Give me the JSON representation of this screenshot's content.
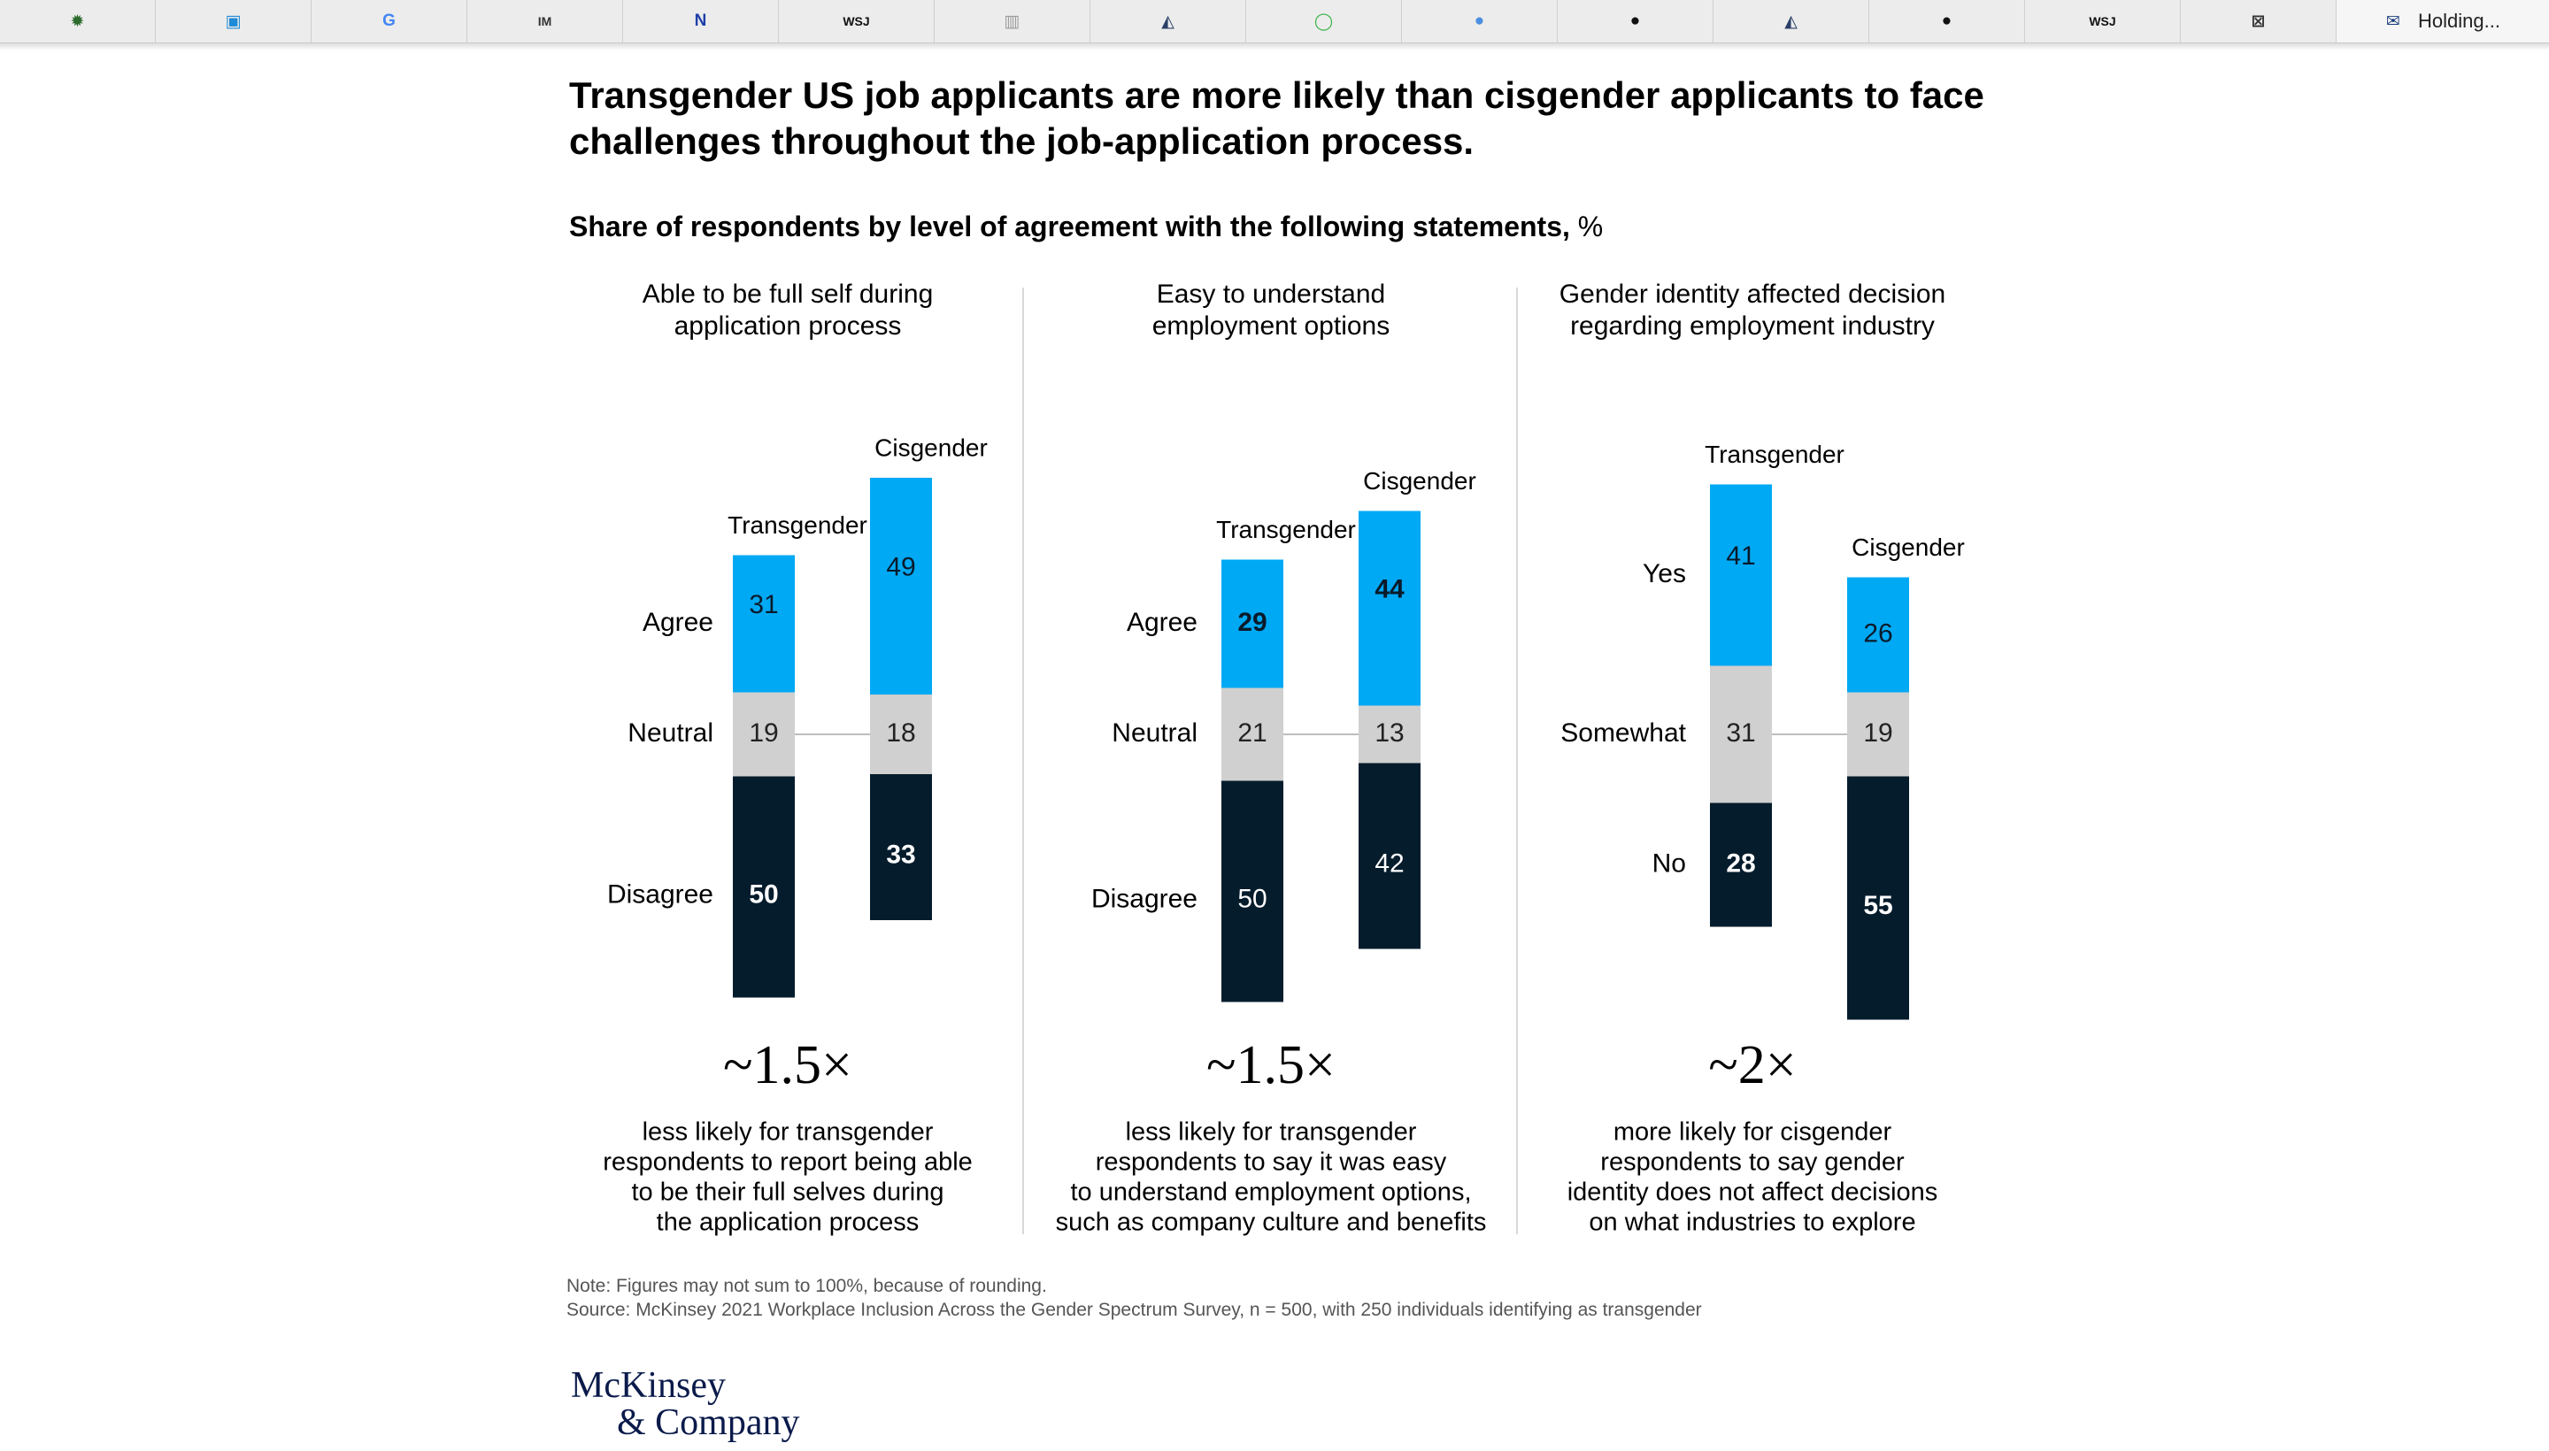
{
  "browser": {
    "tabs": [
      {
        "icon": "spark-icon",
        "glyph": "✹",
        "color": "#2e6b2e"
      },
      {
        "icon": "amex-icon",
        "glyph": "▣",
        "color": "#1f8ad6"
      },
      {
        "icon": "google-icon",
        "glyph": "G",
        "color": "#4285f4"
      },
      {
        "icon": "im-icon",
        "glyph": "IM",
        "color": "#333333"
      },
      {
        "icon": "n-icon",
        "glyph": "N",
        "color": "#1e3fa8"
      },
      {
        "icon": "wsj-icon",
        "glyph": "WSJ",
        "color": "#111111"
      },
      {
        "icon": "chart-icon",
        "glyph": "▥",
        "color": "#9a9a9a"
      },
      {
        "icon": "mountain-icon",
        "glyph": "◭",
        "color": "#2a3f66"
      },
      {
        "icon": "ring-icon",
        "glyph": "◯",
        "color": "#3cb34a"
      },
      {
        "icon": "blob-icon",
        "glyph": "●",
        "color": "#4b8fe0"
      },
      {
        "icon": "github-icon",
        "glyph": "●",
        "color": "#111111"
      },
      {
        "icon": "mountain-icon",
        "glyph": "◭",
        "color": "#2a3f66"
      },
      {
        "icon": "github-icon",
        "glyph": "●",
        "color": "#111111"
      },
      {
        "icon": "wsj-icon",
        "glyph": "WSJ",
        "color": "#111111"
      },
      {
        "icon": "x-box-icon",
        "glyph": "⊠",
        "color": "#333333"
      }
    ],
    "last_tab": {
      "icon": "mail-icon",
      "glyph": "✉",
      "color": "#1a3d7c",
      "label": "Holding..."
    }
  },
  "header": {
    "title": "Transgender US job applicants are more likely than cisgender applicants to face challenges throughout the job-application process.",
    "subtitle": "Share of respondents by level of agreement with the following statements,",
    "subtitle_unit": "%"
  },
  "colors": {
    "blue": "#00a9f4",
    "gray": "#d0d0d0",
    "navy": "#051c2c",
    "divider": "#d9d9d9"
  },
  "chart_data": [
    {
      "type": "bar",
      "title": "Able to be full self during application process",
      "series": [
        {
          "name": "Transgender",
          "values": {
            "Agree": 31,
            "Neutral": 19,
            "Disagree": 50
          }
        },
        {
          "name": "Cisgender",
          "values": {
            "Agree": 49,
            "Neutral": 18,
            "Disagree": 33
          }
        }
      ],
      "categories": [
        "Agree",
        "Neutral",
        "Disagree"
      ],
      "multiplier": "~1.5×",
      "caption": [
        "less likely for transgender",
        "respondents to report being able",
        "to be their full selves during",
        "the application process"
      ]
    },
    {
      "type": "bar",
      "title": "Easy to understand employment options",
      "series": [
        {
          "name": "Transgender",
          "values": {
            "Agree": 29,
            "Neutral": 21,
            "Disagree": 50
          }
        },
        {
          "name": "Cisgender",
          "values": {
            "Agree": 44,
            "Neutral": 13,
            "Disagree": 42
          }
        }
      ],
      "categories": [
        "Agree",
        "Neutral",
        "Disagree"
      ],
      "multiplier": "~1.5×",
      "caption": [
        "less likely for transgender",
        "respondents to say it was easy",
        "to understand employment options,",
        "such as company culture and benefits"
      ]
    },
    {
      "type": "bar",
      "title": "Gender identity affected decision regarding employment industry",
      "series": [
        {
          "name": "Transgender",
          "values": {
            "Yes": 41,
            "Somewhat": 31,
            "No": 28
          }
        },
        {
          "name": "Cisgender",
          "values": {
            "Yes": 26,
            "Somewhat": 19,
            "No": 55
          }
        }
      ],
      "categories": [
        "Yes",
        "Somewhat",
        "No"
      ],
      "multiplier": "~2×",
      "caption": [
        "more likely for cisgender",
        "respondents to say gender",
        "identity does not affect decisions",
        "on what industries to explore"
      ]
    }
  ],
  "footer": {
    "note": "Note: Figures may not sum to 100%, because of rounding.",
    "source": "Source: McKinsey 2021 Workplace Inclusion Across the Gender Spectrum Survey, n = 500, with 250 individuals identifying as transgender",
    "logo_line1": "McKinsey",
    "logo_line2": "& Company"
  }
}
